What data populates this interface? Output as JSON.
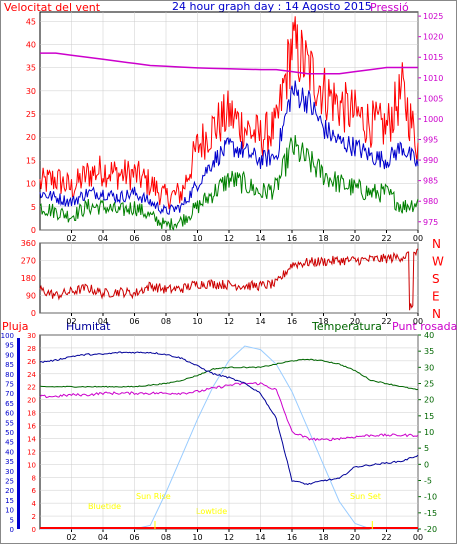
{
  "header": {
    "wind_label": "Velocitat del vent",
    "title": "24 hour graph day : 14 Agosto 2015",
    "pressure_label": "Pressió"
  },
  "panel3_labels": {
    "rain": "Pluja",
    "humidity": "Humitat",
    "temperature": "Temperatura",
    "dewpoint": "Punt rosada"
  },
  "markers": {
    "bluetide": "Bluetide",
    "sunrise": "Sun Rise",
    "lowtide": "Lowtide",
    "sunset": "Sun Set"
  },
  "colors": {
    "wind_gust": "#ff0000",
    "wind_avg": "#0000cc",
    "wind_low": "#008000",
    "pressure": "#cc00cc",
    "direction": "#cc0000",
    "humidity": "#000099",
    "temperature": "#006600",
    "dewpoint": "#cc00cc",
    "solar": "#99ccff",
    "rain": "#ff0000",
    "markers": "#ffff00"
  },
  "chart_data": [
    {
      "type": "line",
      "title": "24 hour graph day : 14 Agosto 2015",
      "series_names": [
        "Velocitat del vent",
        "Pressió"
      ],
      "x_ticks": [
        "02",
        "04",
        "06",
        "08",
        "10",
        "12",
        "14",
        "16",
        "18",
        "20",
        "22",
        "00"
      ],
      "y_left_ticks": [
        "45",
        "40",
        "35",
        "30",
        "25",
        "20",
        "15",
        "10",
        "5",
        "0"
      ],
      "y_left_range": [
        0,
        47
      ],
      "y_right_ticks": [
        "1025",
        "1020",
        "1015",
        "1010",
        "1005",
        "1000",
        "995",
        "990",
        "985",
        "980",
        "975"
      ],
      "y_right_range": [
        973,
        1026
      ],
      "x_hours": [
        0,
        1,
        2,
        3,
        4,
        5,
        6,
        7,
        8,
        9,
        10,
        11,
        12,
        13,
        14,
        15,
        16,
        17,
        18,
        19,
        20,
        21,
        22,
        23,
        24
      ],
      "wind_gust": [
        10,
        11,
        9,
        12,
        13,
        12,
        12,
        10,
        7,
        8,
        18,
        22,
        25,
        22,
        20,
        22,
        40,
        35,
        30,
        27,
        25,
        23,
        22,
        30,
        18
      ],
      "wind_avg": [
        8,
        7,
        6,
        8,
        8,
        7,
        8,
        6,
        4,
        5,
        10,
        15,
        18,
        17,
        15,
        16,
        30,
        28,
        22,
        19,
        18,
        16,
        15,
        18,
        14
      ],
      "wind_low": [
        5,
        4,
        3,
        5,
        5,
        4,
        5,
        3,
        1,
        2,
        5,
        8,
        11,
        10,
        8,
        9,
        18,
        15,
        12,
        10,
        9,
        8,
        8,
        5,
        6
      ],
      "pressure": [
        1016,
        1016,
        1015.5,
        1015,
        1014.5,
        1014,
        1013.5,
        1013,
        1012.8,
        1012.6,
        1012.4,
        1012.3,
        1012.2,
        1012.1,
        1012,
        1012,
        1011.5,
        1011,
        1011,
        1011,
        1011.5,
        1012,
        1012.5,
        1012.5,
        1012.5
      ]
    },
    {
      "type": "line",
      "title": "",
      "y_ticks": [
        "360",
        "270",
        "180",
        "90",
        "0"
      ],
      "y_range": [
        0,
        360
      ],
      "compass": [
        "N",
        "W",
        "S",
        "E",
        "N"
      ],
      "x_hours": [
        0,
        1,
        2,
        3,
        4,
        5,
        6,
        7,
        8,
        9,
        10,
        11,
        12,
        13,
        14,
        15,
        16,
        17,
        18,
        19,
        20,
        21,
        22,
        23,
        24
      ],
      "direction": [
        120,
        90,
        110,
        130,
        100,
        110,
        100,
        140,
        120,
        125,
        150,
        150,
        145,
        140,
        140,
        150,
        250,
        260,
        265,
        270,
        270,
        275,
        280,
        290,
        310
      ]
    },
    {
      "type": "line",
      "title": "",
      "series_names": [
        "Pluja",
        "Humitat",
        "Temperatura",
        "Punt rosada"
      ],
      "y_humidity_ticks": [
        "100",
        "95",
        "90",
        "85",
        "80",
        "75",
        "70",
        "65",
        "60",
        "55",
        "50",
        "45",
        "40",
        "35",
        "30",
        "25",
        "20",
        "15",
        "10",
        "5",
        "0"
      ],
      "y_humidity_range": [
        0,
        100
      ],
      "y_rain_ticks": [
        "30",
        "28",
        "26",
        "24",
        "22",
        "20",
        "18",
        "16",
        "14",
        "12",
        "10",
        "8",
        "6",
        "4",
        "2",
        "0"
      ],
      "y_rain_range": [
        0,
        30
      ],
      "y_temp_ticks": [
        "40",
        "35",
        "30",
        "25",
        "20",
        "15",
        "10",
        "5",
        "0",
        "-5",
        "-10",
        "-15",
        "-20"
      ],
      "y_temp_range": [
        -20,
        40
      ],
      "x_hours": [
        0,
        1,
        2,
        3,
        4,
        5,
        6,
        7,
        8,
        9,
        10,
        11,
        12,
        13,
        14,
        15,
        16,
        17,
        18,
        19,
        20,
        21,
        22,
        23,
        24
      ],
      "humidity": [
        86,
        87,
        89,
        90,
        90,
        91,
        91,
        91,
        90,
        88,
        84,
        80,
        78,
        75,
        70,
        57,
        25,
        23,
        25,
        26,
        32,
        33,
        34,
        35,
        38
      ],
      "temperature": [
        24,
        24,
        24,
        24,
        24,
        24,
        24,
        24.5,
        25,
        26,
        27.5,
        29.5,
        30,
        30,
        30,
        31,
        32,
        32.5,
        32,
        31,
        29,
        26,
        25,
        24,
        23
      ],
      "dewpoint": [
        21,
        21,
        21.5,
        21.5,
        22,
        22,
        22,
        22,
        22,
        22,
        22.5,
        23.5,
        24.5,
        25,
        25,
        23,
        10,
        8,
        7.5,
        8,
        8.5,
        9,
        9,
        9,
        9
      ],
      "solar_relative": [
        0,
        0,
        0,
        0,
        0,
        0,
        0,
        0.02,
        0.2,
        0.4,
        0.6,
        0.78,
        0.92,
        1.0,
        0.98,
        0.9,
        0.75,
        0.55,
        0.35,
        0.15,
        0.03,
        0,
        0,
        0,
        0
      ],
      "rain": [
        0,
        0,
        0,
        0,
        0,
        0,
        0,
        0,
        0,
        0,
        0,
        0,
        0,
        0,
        0,
        0,
        0,
        0,
        0,
        0,
        0,
        0,
        0,
        0,
        0
      ]
    }
  ]
}
